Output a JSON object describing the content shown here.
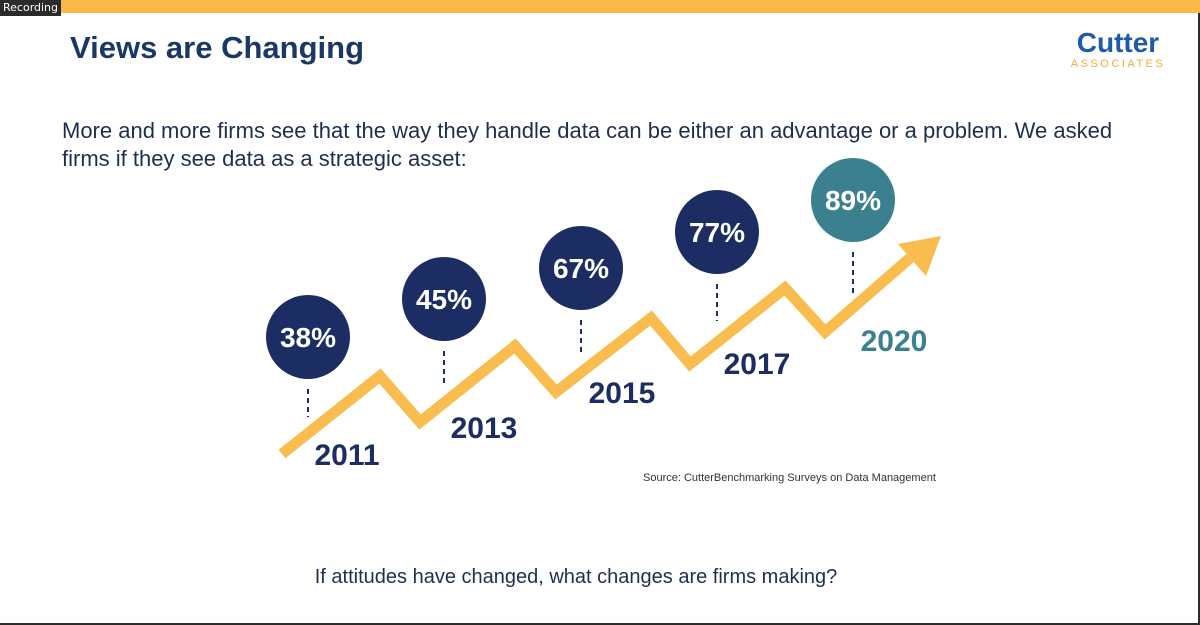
{
  "window": {
    "recording_label": "Recording"
  },
  "slide": {
    "title": "Views are Changing",
    "logo": {
      "name": "Cutter",
      "subtitle": "ASSOCIATES"
    },
    "intro": "More and more firms see that the way they handle data can be either an advantage or a problem.  We asked firms if they see data as a strategic asset:",
    "source": "Source: CutterBenchmarking Surveys on Data Management",
    "question": "If attitudes have changed, what changes are firms making?"
  },
  "colors": {
    "accent_bar": "#f8b84a",
    "arrow": "#f9bc4f",
    "bubble_dark": "#1b2d63",
    "bubble_latest": "#3b8090",
    "title": "#1b3768",
    "year_dark": "#1b2d63",
    "year_latest": "#3b8090"
  },
  "chart_data": {
    "type": "line",
    "title": "",
    "categories": [
      "2011",
      "2013",
      "2015",
      "2017",
      "2020"
    ],
    "values": [
      38,
      45,
      67,
      77,
      89
    ],
    "value_labels": [
      "38%",
      "45%",
      "67%",
      "77%",
      "89%"
    ],
    "unit": "%",
    "grid": false,
    "legend": "none"
  }
}
